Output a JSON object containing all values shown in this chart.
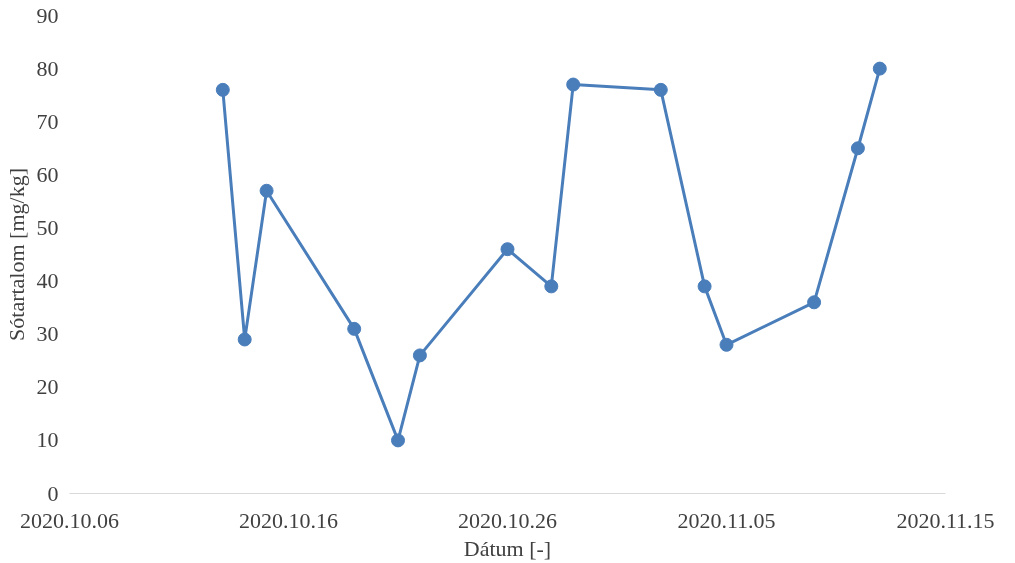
{
  "chart_data": {
    "type": "line",
    "xlabel": "Dátum [-]",
    "ylabel": "Sótartalom [mg/kg]",
    "x": [
      "2020-10-13",
      "2020-10-14",
      "2020-10-15",
      "2020-10-19",
      "2020-10-21",
      "2020-10-22",
      "2020-10-26",
      "2020-10-28",
      "2020-10-29",
      "2020-11-02",
      "2020-11-04",
      "2020-11-05",
      "2020-11-09",
      "2020-11-11",
      "2020-11-12"
    ],
    "series": [
      {
        "color": "#4a7ebb",
        "values": [
          76,
          29,
          57,
          31,
          10,
          26,
          46,
          39,
          77,
          76,
          39,
          28,
          36,
          65,
          80
        ]
      }
    ],
    "xlim": [
      "2020-10-06",
      "2020-11-15"
    ],
    "xticks": [
      {
        "value": "2020-10-06",
        "label": "2020.10.06"
      },
      {
        "value": "2020-10-16",
        "label": "2020.10.16"
      },
      {
        "value": "2020-10-26",
        "label": "2020.10.26"
      },
      {
        "value": "2020-11-05",
        "label": "2020.11.05"
      },
      {
        "value": "2020-11-15",
        "label": "2020.11.15"
      }
    ],
    "ylim": [
      0,
      90
    ],
    "yticks": [
      0,
      10,
      20,
      30,
      40,
      50,
      60,
      70,
      80,
      90
    ],
    "grid": false,
    "marker": "circle",
    "line_style": "solid"
  }
}
